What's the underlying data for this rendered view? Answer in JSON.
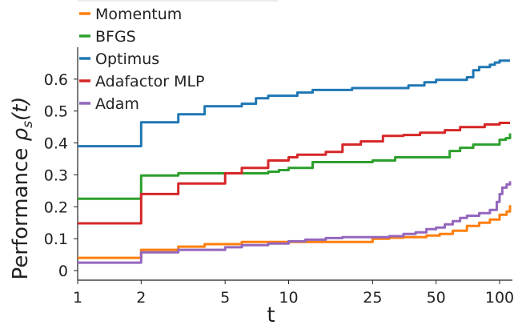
{
  "chart_data": {
    "type": "line",
    "xlabel": "t",
    "ylabel_text": "Performance",
    "ylabel_symbol": "ρ",
    "ylabel_sub": "s",
    "ylabel_arg": "(t)",
    "x_scale": "log",
    "xlim": [
      1,
      115
    ],
    "ylim": [
      -0.03,
      0.7
    ],
    "x_ticks": [
      1,
      2,
      5,
      10,
      25,
      50,
      100
    ],
    "x_tick_labels": [
      "1",
      "2",
      "5",
      "10",
      "25",
      "50",
      "100"
    ],
    "y_ticks": [
      0,
      0.1,
      0.2,
      0.3,
      0.4,
      0.5,
      0.6
    ],
    "y_tick_labels": [
      "0",
      "0.1",
      "0.2",
      "0.3",
      "0.4",
      "0.5",
      "0.6"
    ],
    "grid": false,
    "legend_position": "top-left",
    "series": [
      {
        "name": "Momentum",
        "color": "#ff7f0e",
        "points": [
          [
            1,
            0.04
          ],
          [
            2,
            0.065
          ],
          [
            3,
            0.075
          ],
          [
            4,
            0.083
          ],
          [
            5,
            0.083
          ],
          [
            6,
            0.09
          ],
          [
            10,
            0.09
          ],
          [
            25,
            0.1
          ],
          [
            30,
            0.103
          ],
          [
            35,
            0.105
          ],
          [
            45,
            0.11
          ],
          [
            52,
            0.115
          ],
          [
            60,
            0.125
          ],
          [
            70,
            0.14
          ],
          [
            80,
            0.15
          ],
          [
            90,
            0.16
          ],
          [
            100,
            0.175
          ],
          [
            108,
            0.185
          ],
          [
            112,
            0.205
          ]
        ]
      },
      {
        "name": "BFGS",
        "color": "#2ca02c",
        "points": [
          [
            1,
            0.225
          ],
          [
            2,
            0.298
          ],
          [
            3,
            0.305
          ],
          [
            7,
            0.305
          ],
          [
            8,
            0.31
          ],
          [
            9,
            0.315
          ],
          [
            10,
            0.322
          ],
          [
            12,
            0.322
          ],
          [
            13,
            0.34
          ],
          [
            20,
            0.34
          ],
          [
            25,
            0.345
          ],
          [
            32,
            0.355
          ],
          [
            55,
            0.355
          ],
          [
            58,
            0.375
          ],
          [
            65,
            0.385
          ],
          [
            75,
            0.395
          ],
          [
            95,
            0.395
          ],
          [
            100,
            0.41
          ],
          [
            107,
            0.415
          ],
          [
            112,
            0.43
          ]
        ]
      },
      {
        "name": "Optimus",
        "color": "#1f77b4",
        "points": [
          [
            1,
            0.39
          ],
          [
            2,
            0.465
          ],
          [
            3,
            0.49
          ],
          [
            4,
            0.515
          ],
          [
            5,
            0.515
          ],
          [
            6,
            0.523
          ],
          [
            7,
            0.54
          ],
          [
            8,
            0.548
          ],
          [
            10,
            0.548
          ],
          [
            11,
            0.558
          ],
          [
            13,
            0.566
          ],
          [
            20,
            0.572
          ],
          [
            35,
            0.572
          ],
          [
            37,
            0.58
          ],
          [
            44,
            0.59
          ],
          [
            50,
            0.598
          ],
          [
            65,
            0.598
          ],
          [
            70,
            0.606
          ],
          [
            75,
            0.628
          ],
          [
            80,
            0.638
          ],
          [
            90,
            0.645
          ],
          [
            95,
            0.652
          ],
          [
            100,
            0.658
          ],
          [
            112,
            0.658
          ]
        ]
      },
      {
        "name": "Adafactor MLP",
        "color": "#d62728",
        "points": [
          [
            1,
            0.148
          ],
          [
            2,
            0.24
          ],
          [
            3,
            0.273
          ],
          [
            4,
            0.273
          ],
          [
            5,
            0.305
          ],
          [
            6,
            0.322
          ],
          [
            7,
            0.322
          ],
          [
            8,
            0.345
          ],
          [
            9,
            0.345
          ],
          [
            10,
            0.355
          ],
          [
            11,
            0.363
          ],
          [
            14,
            0.363
          ],
          [
            15,
            0.372
          ],
          [
            17,
            0.372
          ],
          [
            18,
            0.395
          ],
          [
            22,
            0.405
          ],
          [
            28,
            0.422
          ],
          [
            35,
            0.425
          ],
          [
            42,
            0.432
          ],
          [
            55,
            0.44
          ],
          [
            65,
            0.45
          ],
          [
            85,
            0.458
          ],
          [
            100,
            0.463
          ],
          [
            112,
            0.463
          ]
        ]
      },
      {
        "name": "Adam",
        "color": "#9467bd",
        "points": [
          [
            1,
            0.025
          ],
          [
            2,
            0.057
          ],
          [
            3,
            0.065
          ],
          [
            4,
            0.065
          ],
          [
            5,
            0.073
          ],
          [
            6,
            0.08
          ],
          [
            8,
            0.085
          ],
          [
            10,
            0.092
          ],
          [
            12,
            0.097
          ],
          [
            15,
            0.102
          ],
          [
            18,
            0.105
          ],
          [
            30,
            0.108
          ],
          [
            35,
            0.115
          ],
          [
            40,
            0.12
          ],
          [
            45,
            0.13
          ],
          [
            50,
            0.135
          ],
          [
            55,
            0.145
          ],
          [
            60,
            0.155
          ],
          [
            65,
            0.165
          ],
          [
            70,
            0.172
          ],
          [
            80,
            0.18
          ],
          [
            90,
            0.19
          ],
          [
            97,
            0.215
          ],
          [
            100,
            0.24
          ],
          [
            103,
            0.26
          ],
          [
            108,
            0.27
          ],
          [
            112,
            0.28
          ]
        ]
      }
    ]
  }
}
